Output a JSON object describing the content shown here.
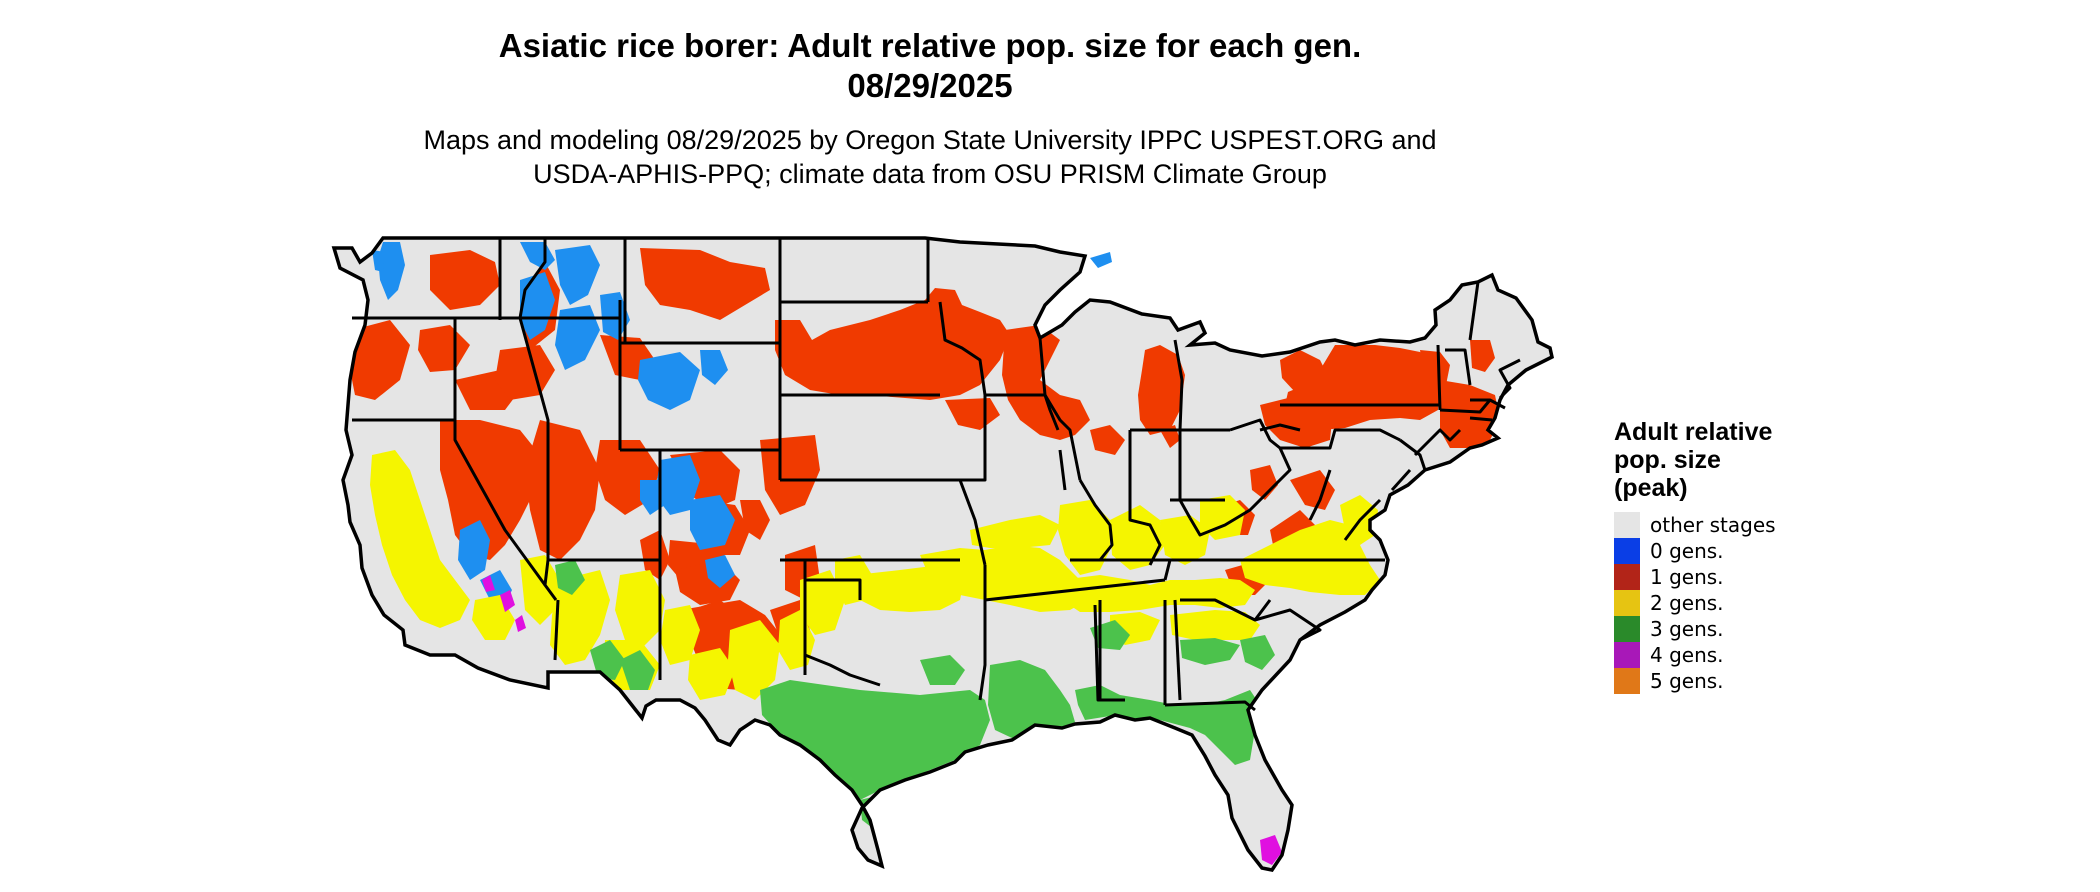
{
  "title_line1": "Asiatic rice borer: Adult relative pop. size for each gen.",
  "title_line2": "08/29/2025",
  "subtitle_line1": "Maps and modeling 08/29/2025 by Oregon State University IPPC USPEST.ORG and",
  "subtitle_line2": "USDA-APHIS-PPQ; climate data from OSU PRISM Climate Group",
  "legend": {
    "title_lines": [
      "Adult relative",
      "pop. size",
      "(peak)"
    ],
    "items": [
      {
        "label": "other stages",
        "color": "#e5e5e5"
      },
      {
        "label": "0 gens.",
        "color": "#0a3ee6"
      },
      {
        "label": "1 gens.",
        "color": "#b22418"
      },
      {
        "label": "2 gens.",
        "color": "#e6c412"
      },
      {
        "label": "3 gens.",
        "color": "#2a8a2a"
      },
      {
        "label": "4 gens.",
        "color": "#a818b8"
      },
      {
        "label": "5 gens.",
        "color": "#e07818"
      }
    ]
  },
  "map_colors": {
    "land": "#e5e5e5",
    "gen0": "#1e8ff0",
    "gen1": "#f03a00",
    "gen2": "#f5f500",
    "gen3": "#4cc24c",
    "gen4": "#e010e0"
  }
}
